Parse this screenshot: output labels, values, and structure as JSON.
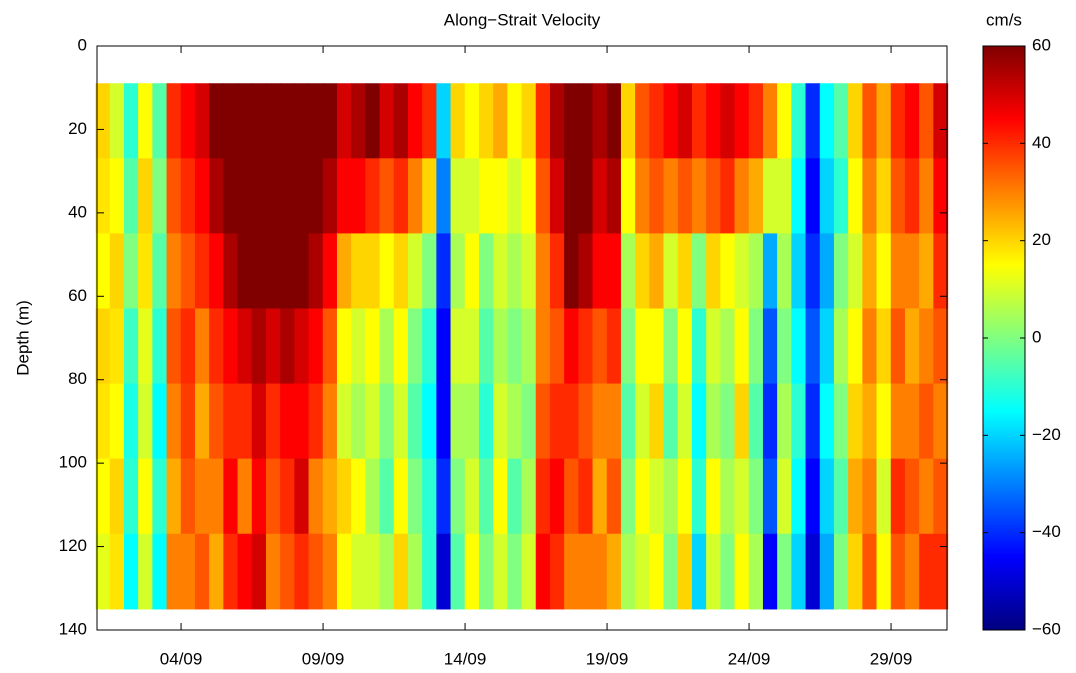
{
  "chart_data": {
    "type": "heatmap",
    "title": "Along−Strait Velocity",
    "ylabel": "Depth (m)",
    "colorbar_label": "cm/s",
    "colormap": "jet",
    "y_inverted": true,
    "x": [
      1.25,
      1.75,
      2.25,
      2.75,
      3.25,
      3.75,
      4.25,
      4.75,
      5.25,
      5.75,
      6.25,
      6.75,
      7.25,
      7.75,
      8.25,
      8.75,
      9.25,
      9.75,
      10.25,
      10.75,
      11.25,
      11.75,
      12.25,
      12.75,
      13.25,
      13.75,
      14.25,
      14.75,
      15.25,
      15.75,
      16.25,
      16.75,
      17.25,
      17.75,
      18.25,
      18.75,
      19.25,
      19.75,
      20.25,
      20.75,
      21.25,
      21.75,
      22.25,
      22.75,
      23.25,
      23.75,
      24.25,
      24.75,
      25.25,
      25.75,
      26.25,
      26.75,
      27.25,
      27.75,
      28.25,
      28.75,
      29.25,
      29.75,
      30.25,
      30.75
    ],
    "y": [
      18,
      36,
      54,
      72,
      90,
      108,
      126
    ],
    "values": [
      [
        20,
        10,
        -10,
        15,
        -5,
        40,
        45,
        50,
        60,
        60,
        60,
        60,
        60,
        60,
        60,
        60,
        60,
        50,
        55,
        60,
        50,
        55,
        45,
        40,
        -20,
        20,
        15,
        20,
        25,
        15,
        20,
        40,
        55,
        60,
        60,
        55,
        60,
        20,
        35,
        40,
        45,
        50,
        40,
        45,
        50,
        45,
        40,
        30,
        15,
        -10,
        -40,
        -15,
        -5,
        20,
        35,
        25,
        40,
        45,
        35,
        50
      ],
      [
        18,
        15,
        -5,
        20,
        0,
        35,
        40,
        45,
        55,
        60,
        60,
        60,
        60,
        60,
        60,
        60,
        55,
        45,
        45,
        40,
        35,
        40,
        30,
        20,
        -30,
        10,
        10,
        15,
        15,
        10,
        15,
        35,
        50,
        60,
        60,
        50,
        55,
        15,
        30,
        35,
        30,
        35,
        30,
        35,
        40,
        30,
        25,
        10,
        10,
        -15,
        -45,
        -20,
        -10,
        15,
        30,
        20,
        35,
        40,
        30,
        45
      ],
      [
        15,
        20,
        0,
        18,
        -5,
        30,
        35,
        40,
        45,
        55,
        60,
        60,
        60,
        60,
        60,
        55,
        45,
        25,
        20,
        20,
        15,
        20,
        10,
        0,
        -40,
        5,
        15,
        0,
        10,
        5,
        10,
        30,
        40,
        60,
        55,
        45,
        45,
        5,
        20,
        25,
        10,
        20,
        0,
        20,
        15,
        10,
        5,
        -25,
        5,
        -20,
        -40,
        -25,
        0,
        10,
        25,
        15,
        30,
        30,
        25,
        40
      ],
      [
        20,
        18,
        -8,
        12,
        -10,
        35,
        40,
        30,
        40,
        45,
        50,
        55,
        50,
        55,
        50,
        45,
        35,
        15,
        10,
        15,
        5,
        15,
        0,
        -10,
        -45,
        10,
        10,
        -5,
        5,
        0,
        5,
        30,
        35,
        45,
        40,
        35,
        40,
        0,
        15,
        15,
        0,
        15,
        -10,
        10,
        5,
        15,
        0,
        -35,
        0,
        -15,
        -35,
        -20,
        5,
        15,
        30,
        20,
        35,
        25,
        30,
        35
      ],
      [
        18,
        15,
        -12,
        10,
        -15,
        30,
        38,
        25,
        35,
        40,
        40,
        50,
        40,
        45,
        45,
        40,
        30,
        10,
        5,
        10,
        0,
        10,
        -5,
        -15,
        -45,
        5,
        5,
        -10,
        10,
        5,
        0,
        35,
        40,
        40,
        35,
        30,
        30,
        -5,
        10,
        20,
        -5,
        10,
        -15,
        5,
        0,
        20,
        -5,
        -40,
        5,
        -10,
        -40,
        -15,
        0,
        20,
        25,
        15,
        30,
        30,
        35,
        30
      ],
      [
        15,
        20,
        -10,
        15,
        -10,
        25,
        35,
        30,
        30,
        45,
        30,
        45,
        35,
        40,
        50,
        30,
        25,
        20,
        15,
        5,
        -5,
        15,
        0,
        -10,
        -40,
        0,
        10,
        -5,
        15,
        -5,
        5,
        40,
        45,
        35,
        40,
        25,
        35,
        0,
        15,
        10,
        5,
        15,
        -10,
        15,
        5,
        10,
        0,
        -35,
        10,
        -15,
        -45,
        -20,
        -5,
        25,
        30,
        10,
        40,
        35,
        30,
        35
      ],
      [
        12,
        18,
        -15,
        10,
        -15,
        30,
        30,
        35,
        25,
        40,
        45,
        50,
        30,
        35,
        40,
        35,
        30,
        15,
        10,
        10,
        5,
        20,
        5,
        -10,
        -50,
        -5,
        15,
        0,
        10,
        0,
        10,
        45,
        40,
        30,
        30,
        30,
        25,
        5,
        10,
        15,
        0,
        20,
        -20,
        10,
        0,
        15,
        5,
        -45,
        0,
        -20,
        -50,
        -25,
        0,
        20,
        35,
        15,
        35,
        30,
        40,
        40
      ]
    ],
    "xlim": [
      1.04,
      30.97
    ],
    "xticks": [
      {
        "value": 4,
        "label": "04/09"
      },
      {
        "value": 9,
        "label": "09/09"
      },
      {
        "value": 14,
        "label": "14/09"
      },
      {
        "value": 19,
        "label": "19/09"
      },
      {
        "value": 24,
        "label": "24/09"
      },
      {
        "value": 29,
        "label": "29/09"
      }
    ],
    "ylim": [
      0,
      140
    ],
    "yticks": [
      0,
      20,
      40,
      60,
      80,
      100,
      120,
      140
    ],
    "clim": [
      -60,
      60
    ],
    "cticks": [
      {
        "value": -60,
        "label": "−60"
      },
      {
        "value": -40,
        "label": "−40"
      },
      {
        "value": -20,
        "label": "−20"
      },
      0,
      20,
      40,
      60
    ]
  }
}
